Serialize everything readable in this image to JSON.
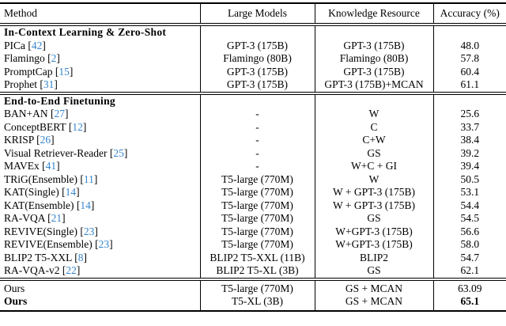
{
  "table": {
    "headers": [
      "Method",
      "Large Models",
      "Knowledge Resource",
      "Accuracy (%)"
    ],
    "colors": {
      "citation": "#3584cc",
      "text": "#000000",
      "rule": "#000000",
      "background": "#ffffff"
    },
    "sections": [
      {
        "title": "In-Context Learning & Zero-Shot",
        "rows": [
          {
            "method": "PICa",
            "cite": "42",
            "model": "GPT-3 (175B)",
            "knowledge": "GPT-3 (175B)",
            "acc": "48.0"
          },
          {
            "method": "Flamingo",
            "cite": "2",
            "model": "Flamingo (80B)",
            "knowledge": "Flamingo (80B)",
            "acc": "57.8"
          },
          {
            "method": "PromptCap",
            "cite": "15",
            "model": "GPT-3 (175B)",
            "knowledge": "GPT-3 (175B)",
            "acc": "60.4"
          },
          {
            "method": "Prophet",
            "cite": "31",
            "model": "GPT-3 (175B)",
            "knowledge": "GPT-3 (175B)+MCAN",
            "acc": "61.1"
          }
        ]
      },
      {
        "title": "End-to-End Finetuning",
        "rows": [
          {
            "method": "BAN+AN",
            "cite": "27",
            "model": "-",
            "knowledge": "W",
            "acc": "25.6"
          },
          {
            "method": "ConceptBERT",
            "cite": "12",
            "model": "-",
            "knowledge": "C",
            "acc": "33.7"
          },
          {
            "method": "KRISP",
            "cite": "26",
            "model": "-",
            "knowledge": "C+W",
            "acc": "38.4"
          },
          {
            "method": "Visual Retriever-Reader",
            "cite": "25",
            "model": "-",
            "knowledge": "GS",
            "acc": "39.2"
          },
          {
            "method": "MAVEx",
            "cite": "41",
            "model": "-",
            "knowledge": "W+C + GI",
            "acc": "39.4"
          },
          {
            "method": "TRiG(Ensemble)",
            "cite": "11",
            "model": "T5-large (770M)",
            "knowledge": "W",
            "acc": "50.5"
          },
          {
            "method": "KAT(Single)",
            "cite": "14",
            "model": "T5-large (770M)",
            "knowledge": "W + GPT-3 (175B)",
            "acc": "53.1"
          },
          {
            "method": "KAT(Ensemble)",
            "cite": "14",
            "model": "T5-large (770M)",
            "knowledge": "W + GPT-3 (175B)",
            "acc": "54.4"
          },
          {
            "method": "RA-VQA",
            "cite": "21",
            "model": "T5-large (770M)",
            "knowledge": "GS",
            "acc": "54.5"
          },
          {
            "method": "REVIVE(Single)",
            "cite": "23",
            "model": "T5-large (770M)",
            "knowledge": "W+GPT-3 (175B)",
            "acc": "56.6"
          },
          {
            "method": "REVIVE(Ensemble)",
            "cite": "23",
            "model": "T5-large (770M)",
            "knowledge": "W+GPT-3 (175B)",
            "acc": "58.0"
          },
          {
            "method": "BLIP2 T5-XXL",
            "cite": "8",
            "model": "BLIP2 T5-XXL (11B)",
            "knowledge": "BLIP2",
            "acc": "54.7"
          },
          {
            "method": "RA-VQA-v2",
            "cite": "22",
            "model": "BLIP2 T5-XL (3B)",
            "knowledge": "GS",
            "acc": "62.1"
          }
        ]
      },
      {
        "title": null,
        "rows": [
          {
            "method": "Ours",
            "model": "T5-large (770M)",
            "knowledge": "GS + MCAN",
            "acc": "63.09"
          },
          {
            "method": "Ours",
            "bold": true,
            "model": "T5-XL (3B)",
            "knowledge": "GS + MCAN",
            "acc": "65.1"
          }
        ]
      }
    ]
  }
}
